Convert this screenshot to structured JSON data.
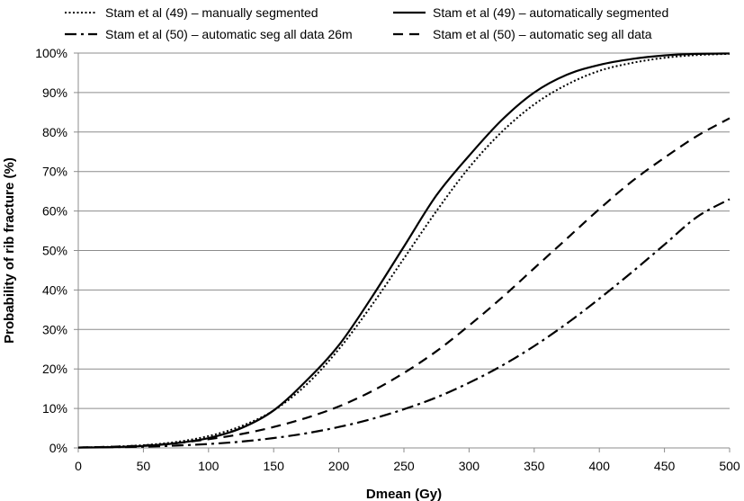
{
  "chart_data": {
    "type": "line",
    "title": "",
    "xlabel": "Dmean (Gy)",
    "ylabel": "Probability of rib fracture (%)",
    "xlim": [
      0,
      500
    ],
    "ylim": [
      0,
      100
    ],
    "x_ticks": [
      0,
      50,
      100,
      150,
      200,
      250,
      300,
      350,
      400,
      450,
      500
    ],
    "y_ticks": [
      0,
      10,
      20,
      30,
      40,
      50,
      60,
      70,
      80,
      90,
      100
    ],
    "x_tick_labels": [
      "0",
      "50",
      "100",
      "150",
      "200",
      "250",
      "300",
      "350",
      "400",
      "450",
      "500"
    ],
    "y_tick_labels": [
      "0%",
      "10%",
      "20%",
      "30%",
      "40%",
      "50%",
      "60%",
      "70%",
      "80%",
      "90%",
      "100%"
    ],
    "grid": "horizontal",
    "legend_position": "top",
    "series": [
      {
        "name": "Stam et al (49) – manually segmented",
        "style": "dotted",
        "x": [
          0,
          25,
          50,
          75,
          100,
          125,
          150,
          175,
          200,
          225,
          250,
          275,
          300,
          325,
          350,
          375,
          400,
          425,
          450,
          475,
          500
        ],
        "y": [
          0.1,
          0.3,
          0.7,
          1.5,
          3.0,
          5.5,
          9.5,
          16,
          25,
          36,
          48,
          60,
          71,
          80,
          87,
          92,
          95.5,
          97.5,
          98.8,
          99.5,
          99.8
        ]
      },
      {
        "name": "Stam et al (49) – automatically segmented",
        "style": "solid",
        "x": [
          0,
          25,
          50,
          75,
          100,
          125,
          150,
          175,
          200,
          225,
          250,
          275,
          300,
          325,
          350,
          375,
          400,
          425,
          450,
          475,
          500
        ],
        "y": [
          0.1,
          0.2,
          0.5,
          1.2,
          2.5,
          5.0,
          9.5,
          17,
          26,
          38,
          51,
          64,
          74,
          83,
          90,
          94.5,
          97,
          98.5,
          99.4,
          99.8,
          99.9
        ]
      },
      {
        "name": "Stam et al (50) – automatic seg all data 26m",
        "style": "dash-dot",
        "x": [
          0,
          25,
          50,
          75,
          100,
          125,
          150,
          175,
          200,
          225,
          250,
          275,
          300,
          325,
          350,
          375,
          400,
          425,
          450,
          475,
          500
        ],
        "y": [
          0.1,
          0.2,
          0.3,
          0.6,
          1.0,
          1.6,
          2.5,
          3.7,
          5.3,
          7.3,
          9.8,
          12.8,
          16.5,
          20.8,
          25.8,
          31.5,
          37.8,
          44.5,
          51.5,
          58.5,
          63
        ]
      },
      {
        "name": "Stam et al (50) – automatic seg all data",
        "style": "dashed",
        "x": [
          0,
          25,
          50,
          75,
          100,
          125,
          150,
          175,
          200,
          225,
          250,
          275,
          300,
          325,
          350,
          375,
          400,
          425,
          450,
          475,
          500
        ],
        "y": [
          0.1,
          0.3,
          0.6,
          1.2,
          2.2,
          3.5,
          5.3,
          7.6,
          10.5,
          14.3,
          19,
          24.5,
          31,
          38,
          45.5,
          53,
          60.5,
          67.5,
          73.5,
          79,
          83.5
        ]
      }
    ]
  }
}
